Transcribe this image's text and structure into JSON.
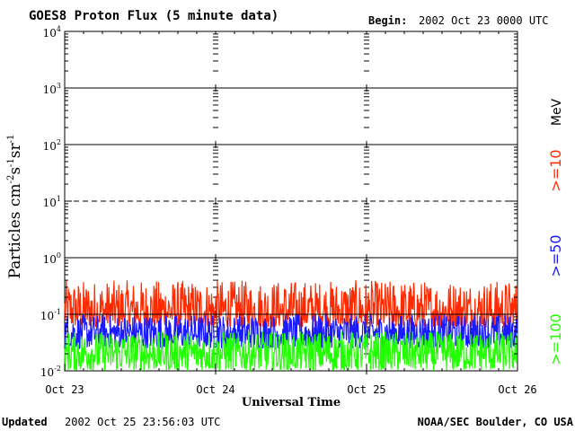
{
  "chart_data": {
    "type": "line",
    "title": "GOES8 Proton Flux (5 minute data)",
    "begin_label": "Begin:",
    "begin_value": "2002 Oct 23 0000 UTC",
    "xlabel": "Universal Time",
    "ylabel": {
      "base": "Particles cm",
      "sup1": "-2",
      "mid1": "s",
      "sup2": "-1",
      "mid2": "sr",
      "sup3": "-1"
    },
    "yscale": "log",
    "ylim": [
      0.01,
      10000
    ],
    "y_ticks": [
      {
        "value": 0.01,
        "base": "10",
        "exp": "-2"
      },
      {
        "value": 0.1,
        "base": "10",
        "exp": "-1"
      },
      {
        "value": 1,
        "base": "10",
        "exp": "0"
      },
      {
        "value": 10,
        "base": "10",
        "exp": "1"
      },
      {
        "value": 100,
        "base": "10",
        "exp": "2"
      },
      {
        "value": 1000,
        "base": "10",
        "exp": "3"
      },
      {
        "value": 10000,
        "base": "10",
        "exp": "4"
      }
    ],
    "x_ticks": [
      "Oct 23",
      "Oct 24",
      "Oct 25",
      "Oct 26"
    ],
    "x_range_days": [
      0,
      3
    ],
    "reference_lines": [
      {
        "value": 10,
        "style": "dashed"
      },
      {
        "value": 0.1,
        "style": "solid"
      }
    ],
    "unit_label": "MeV",
    "series": [
      {
        "name": ">=10",
        "color": "#ff2a00",
        "segments": [
          [
            0,
            0.2
          ],
          [
            0.15,
            0.16
          ],
          [
            0.3,
            0.22
          ],
          [
            0.45,
            0.14
          ],
          [
            0.6,
            0.19
          ],
          [
            0.75,
            0.13
          ],
          [
            0.9,
            0.17
          ],
          [
            1.0,
            0.24
          ],
          [
            1.15,
            0.15
          ],
          [
            1.3,
            0.2
          ],
          [
            1.45,
            0.18
          ],
          [
            1.6,
            0.16
          ],
          [
            1.75,
            0.22
          ],
          [
            1.9,
            0.14
          ],
          [
            2.0,
            0.23
          ],
          [
            2.15,
            0.17
          ],
          [
            2.3,
            0.21
          ],
          [
            2.45,
            0.15
          ],
          [
            2.6,
            0.19
          ],
          [
            2.75,
            0.13
          ],
          [
            2.9,
            0.2
          ],
          [
            3.0,
            0.25
          ]
        ],
        "range": [
          0.06,
          0.4
        ]
      },
      {
        "name": ">=50",
        "color": "#1a1aff",
        "range": [
          0.025,
          0.1
        ]
      },
      {
        "name": ">=100",
        "color": "#22ff00",
        "range": [
          0.01,
          0.05
        ]
      }
    ]
  },
  "footer": {
    "updated_label": "Updated",
    "updated_value": "2002 Oct 25 23:56:03 UTC",
    "credit": "NOAA/SEC Boulder, CO USA"
  }
}
